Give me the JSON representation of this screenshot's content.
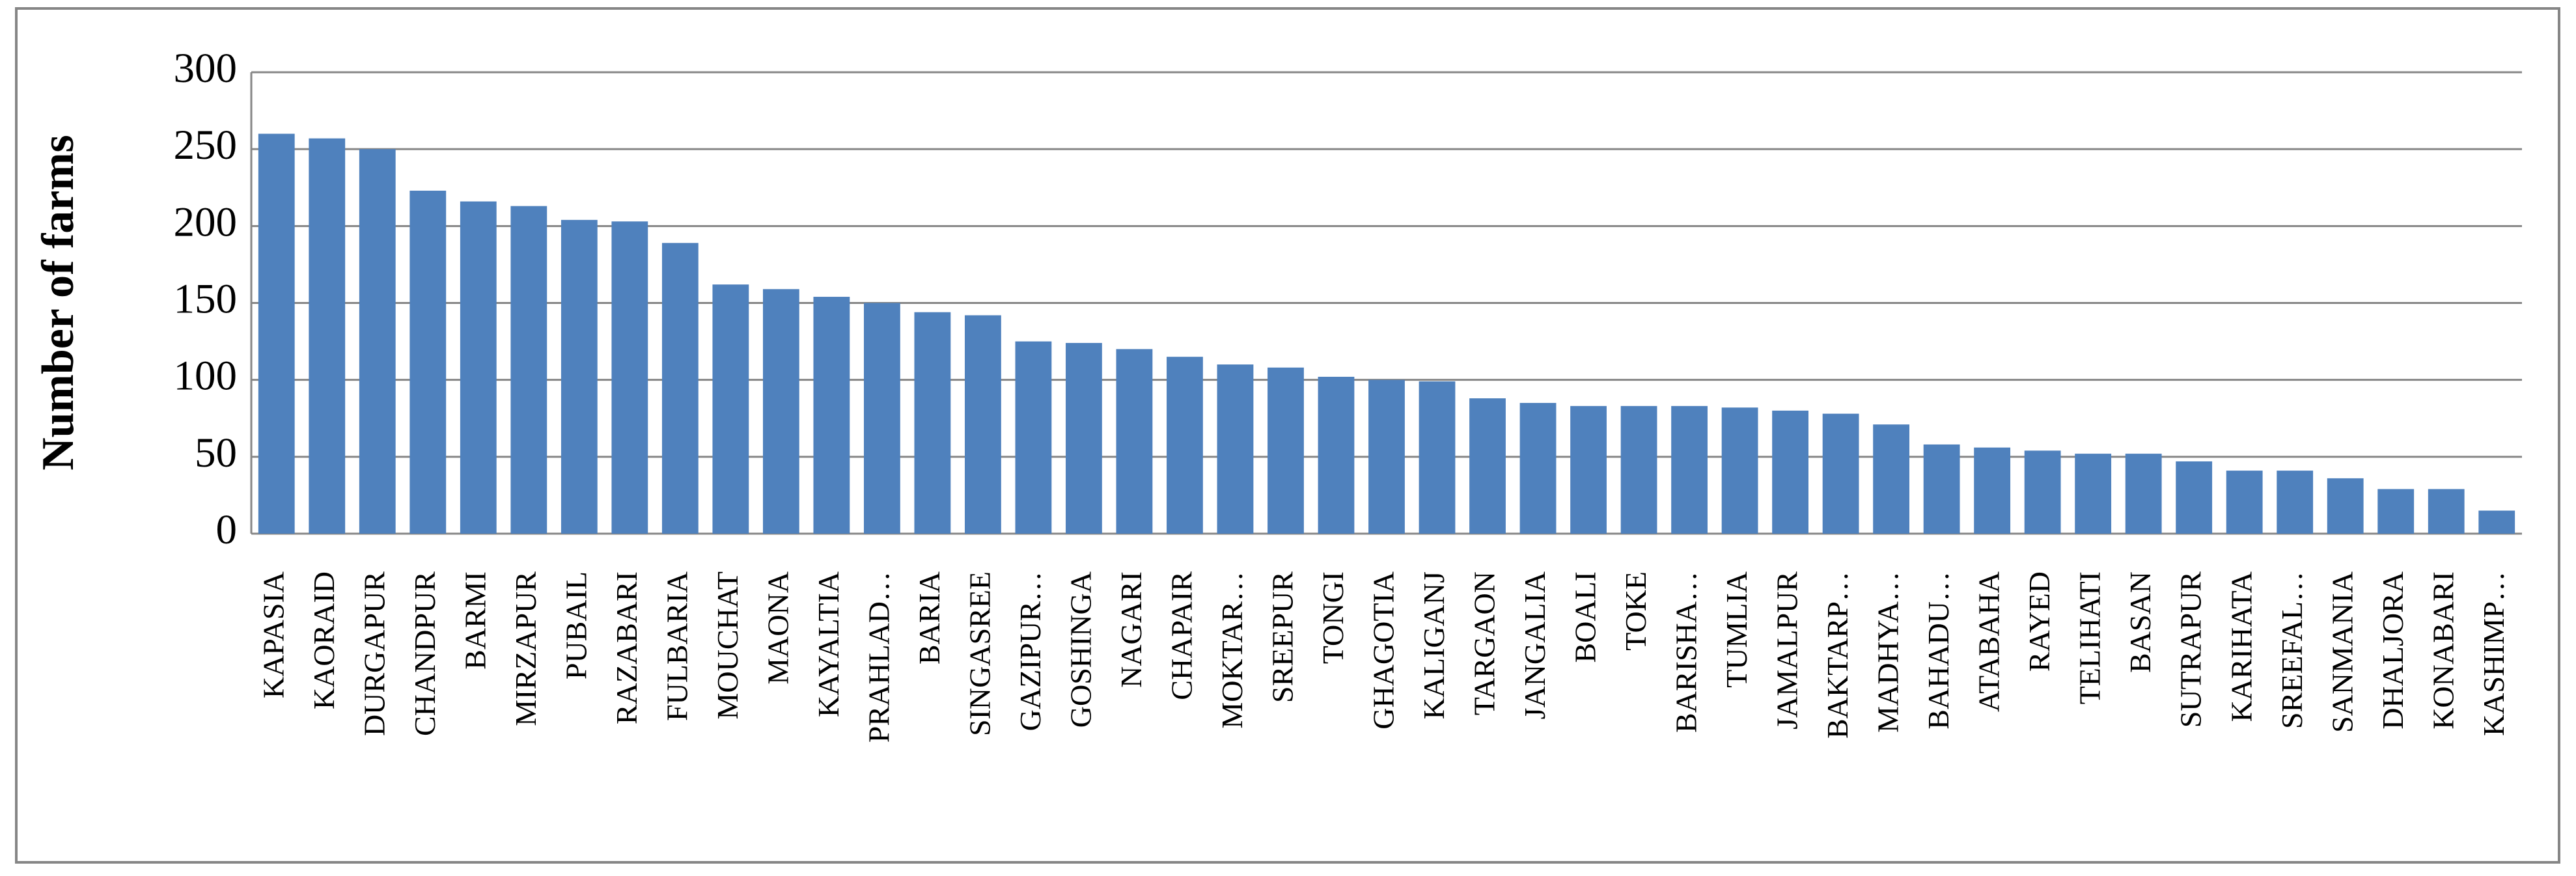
{
  "chart_data": {
    "type": "bar",
    "y_axis_label": "Number of farms",
    "categories": [
      "KAPASIA",
      "KAORAID",
      "DURGAPUR",
      "CHANDPUR",
      "BARMI",
      "MIRZAPUR",
      "PUBAIL",
      "RAZABARI",
      "FULBARIA",
      "MOUCHAT",
      "MAONA",
      "KAYALTIA",
      "PRAHLAD…",
      "BARIA",
      "SINGASREE",
      "GAZIPUR…",
      "GOSHINGA",
      "NAGARI",
      "CHAPAIR",
      "MOKTAR…",
      "SREEPUR",
      "TONGI",
      "GHAGOTIA",
      "KALIGANJ",
      "TARGAON",
      "JANGALIA",
      "BOALI",
      "TOKE",
      "BARISHA…",
      "TUMLIA",
      "JAMALPUR",
      "BAKTARP…",
      "MADHYA…",
      "BAHADU…",
      "ATABAHA",
      "RAYED",
      "TELIHATI",
      "BASAN",
      "SUTRAPUR",
      "KARIHATA",
      "SREEFAL…",
      "SANMANIA",
      "DHALJORA",
      "KONABARI",
      "KASHIMP…"
    ],
    "values": [
      260,
      257,
      250,
      223,
      216,
      213,
      204,
      203,
      189,
      162,
      159,
      154,
      150,
      144,
      142,
      125,
      124,
      120,
      115,
      110,
      108,
      102,
      100,
      99,
      88,
      85,
      83,
      83,
      83,
      82,
      80,
      78,
      71,
      58,
      56,
      54,
      52,
      52,
      47,
      41,
      41,
      36,
      29,
      29,
      15
    ],
    "color": "#4f81bd",
    "ylim": [
      0,
      300
    ],
    "yticks": [
      0,
      50,
      100,
      150,
      200,
      250,
      300
    ],
    "grid": true
  }
}
